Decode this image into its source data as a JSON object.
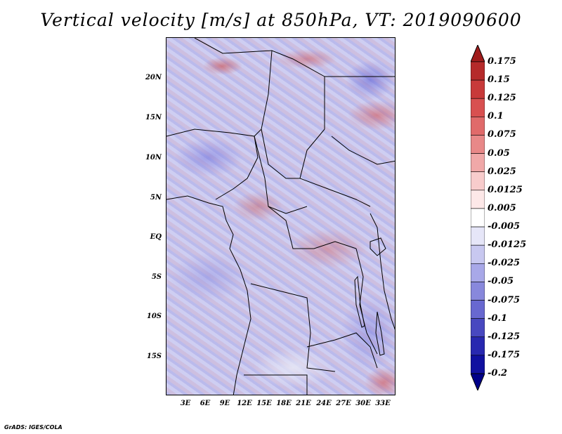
{
  "title": "Vertical velocity [m/s] at 850hPa, VT: 2019090600",
  "credit": "GrADS: IGES/COLA",
  "map": {
    "lat_labels": [
      "20N",
      "15N",
      "10N",
      "5N",
      "EQ",
      "5S",
      "10S",
      "15S"
    ],
    "lon_labels": [
      "3E",
      "6E",
      "9E",
      "12E",
      "15E",
      "18E",
      "21E",
      "24E",
      "27E",
      "30E",
      "33E"
    ]
  },
  "colorbar": {
    "labels": [
      "0.175",
      "0.15",
      "0.125",
      "0.1",
      "0.075",
      "0.05",
      "0.025",
      "0.0125",
      "0.005",
      "-0.005",
      "-0.0125",
      "-0.025",
      "-0.05",
      "-0.075",
      "-0.1",
      "-0.125",
      "-0.175",
      "-0.2"
    ],
    "colors": [
      "#a01c1c",
      "#b52a2a",
      "#c83a3a",
      "#d85050",
      "#e06a6a",
      "#e88888",
      "#f0a8a8",
      "#f8cccc",
      "#fde8e8",
      "#ffffff",
      "#e6e6f8",
      "#c8c8f0",
      "#a8a8e8",
      "#8888dc",
      "#6868d0",
      "#4848c0",
      "#2828b0",
      "#1010a0",
      "#000088"
    ],
    "top_color": "#a01c1c",
    "bottom_color": "#000088"
  }
}
